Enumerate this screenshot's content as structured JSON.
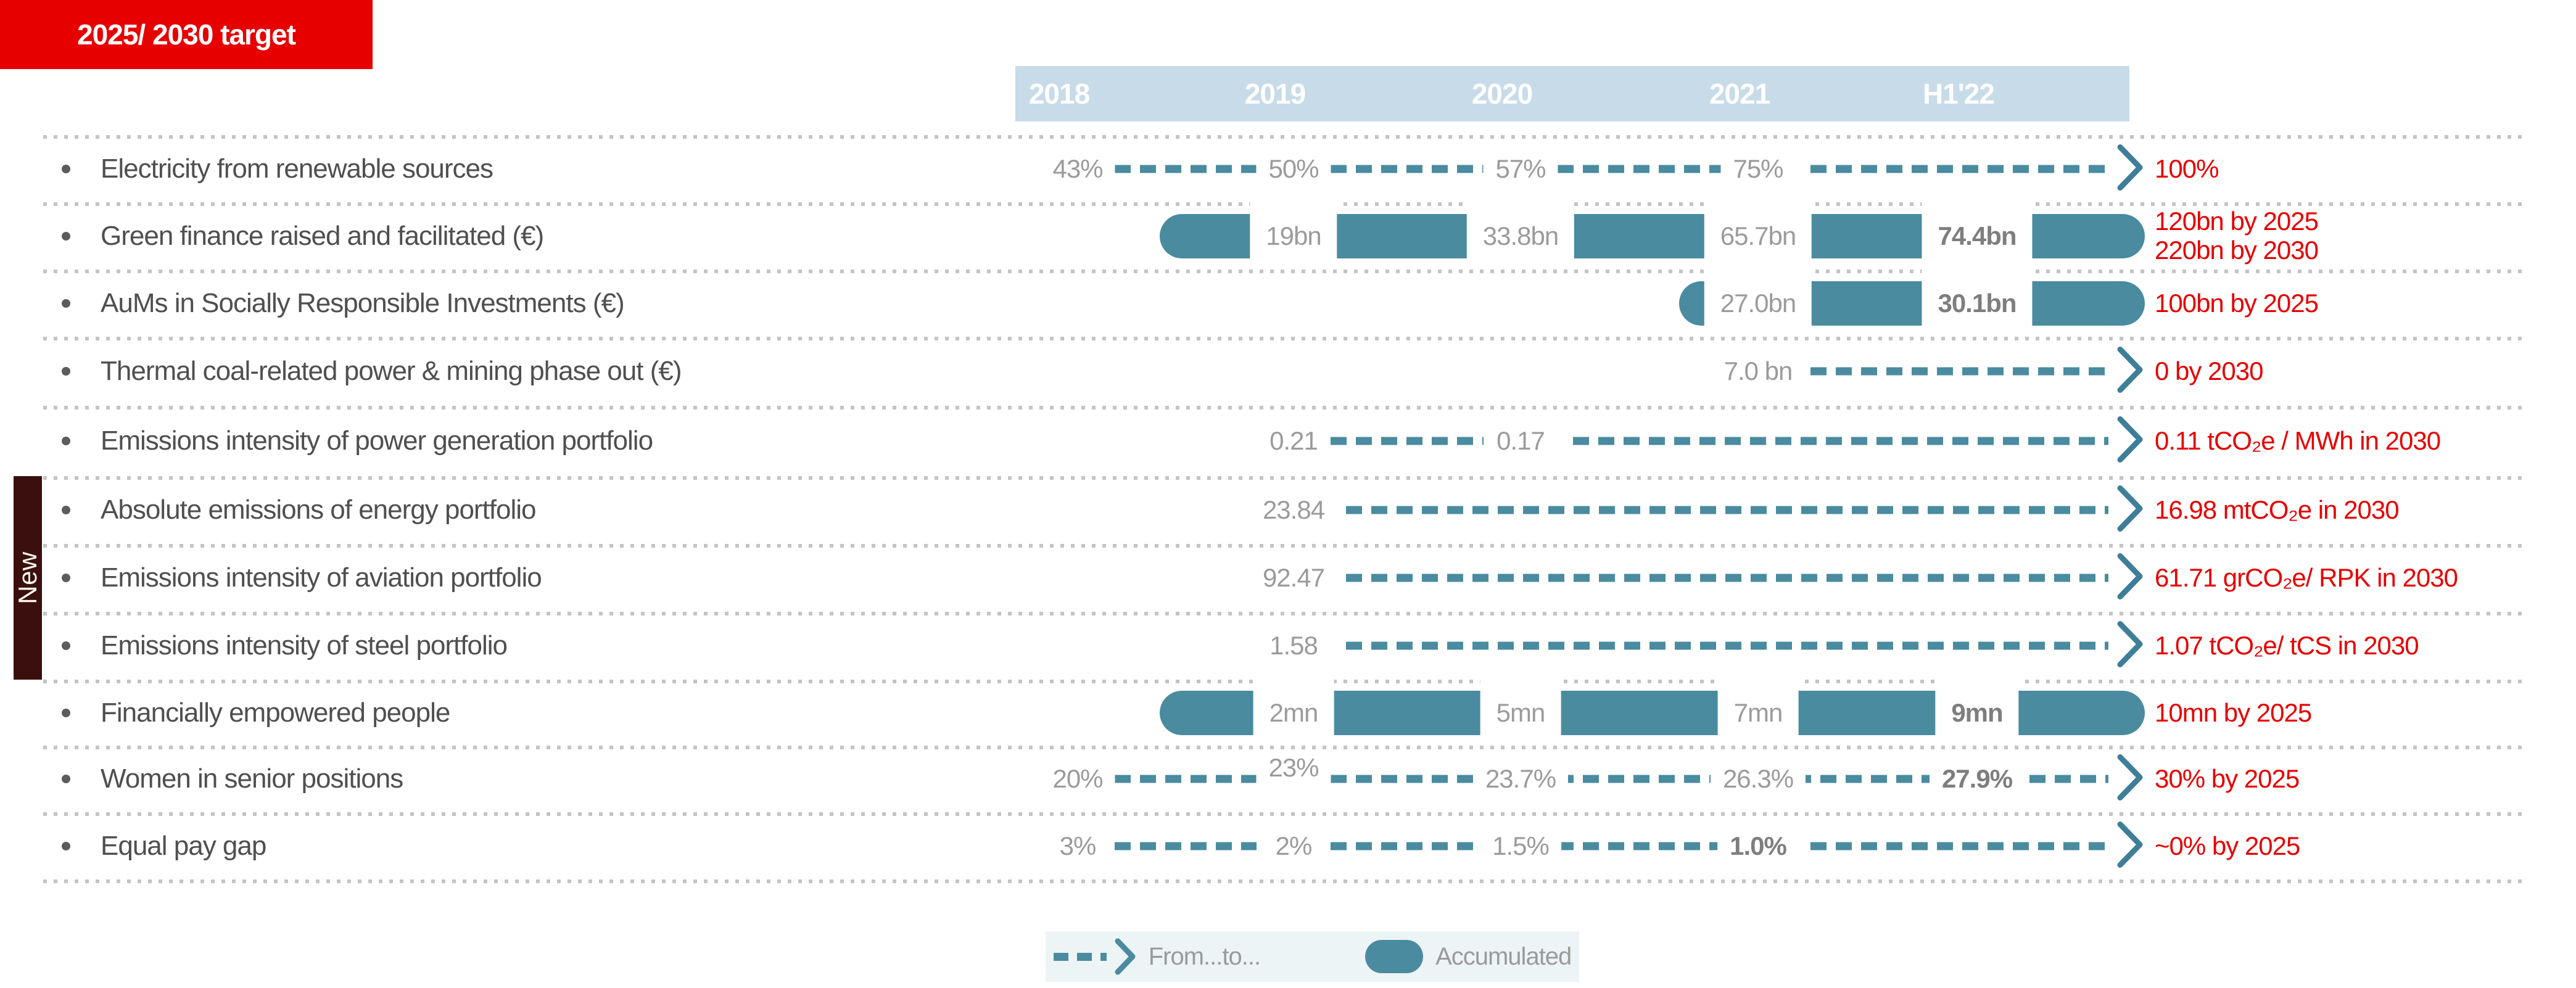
{
  "header": {
    "columns": [
      "2018",
      "2019",
      "2020",
      "2021",
      "H1'22"
    ],
    "target": "2025/ 2030 target"
  },
  "new_badge": "New",
  "rows": [
    {
      "label": "Electricity from renewable sources",
      "kind": "trend",
      "values": [
        {
          "col": 0,
          "text": "43%"
        },
        {
          "col": 1,
          "text": "50%"
        },
        {
          "col": 2,
          "text": "57%"
        },
        {
          "col": 3,
          "text": "75%"
        }
      ],
      "arrow": true,
      "target": "100%"
    },
    {
      "label": "Green finance raised and facilitated (€)",
      "kind": "pill",
      "values": [
        {
          "col": 1,
          "text": "19bn"
        },
        {
          "col": 2,
          "text": "33.8bn"
        },
        {
          "col": 3,
          "text": "65.7bn"
        },
        {
          "col": 4,
          "text": "74.4bn",
          "bold": true
        }
      ],
      "target": "120bn by 2025\n220bn by 2030"
    },
    {
      "label": "AuMs in Socially Responsible Investments (€)",
      "kind": "pill",
      "values": [
        {
          "col": 3,
          "text": "27.0bn"
        },
        {
          "col": 4,
          "text": "30.1bn",
          "bold": true
        }
      ],
      "target": "100bn by 2025"
    },
    {
      "label": "Thermal coal-related power & mining phase out (€)",
      "kind": "trend",
      "values": [
        {
          "col": 3,
          "text": "7.0 bn"
        }
      ],
      "arrow": true,
      "target": "0 by 2030"
    },
    {
      "label": "Emissions intensity of power generation portfolio",
      "kind": "trend",
      "values": [
        {
          "col": 1,
          "text": "0.21"
        },
        {
          "col": 2,
          "text": "0.17"
        }
      ],
      "arrow": true,
      "target": "0.11 tCO₂e / MWh in 2030"
    },
    {
      "label": "Absolute emissions of energy portfolio",
      "kind": "trend",
      "new": true,
      "values": [
        {
          "col": 1,
          "text": "23.84"
        }
      ],
      "arrow": true,
      "target": "16.98 mtCO₂e in 2030"
    },
    {
      "label": "Emissions intensity of aviation portfolio",
      "kind": "trend",
      "new": true,
      "values": [
        {
          "col": 1,
          "text": "92.47"
        }
      ],
      "arrow": true,
      "target": "61.71 grCO₂e/ RPK in 2030"
    },
    {
      "label": "Emissions intensity of steel portfolio",
      "kind": "trend",
      "new": true,
      "values": [
        {
          "col": 1,
          "text": "1.58"
        }
      ],
      "arrow": true,
      "target": "1.07 tCO₂e/ tCS in 2030"
    },
    {
      "label": "Financially empowered people",
      "kind": "pill",
      "values": [
        {
          "col": 1,
          "text": "2mn"
        },
        {
          "col": 2,
          "text": "5mn"
        },
        {
          "col": 3,
          "text": "7mn"
        },
        {
          "col": 4,
          "text": "9mn",
          "bold": true
        }
      ],
      "target": "10mn by 2025"
    },
    {
      "label": "Women in senior positions",
      "kind": "trend",
      "values": [
        {
          "col": 0,
          "text": "20%"
        },
        {
          "col": 1,
          "text": "23%",
          "raised": true
        },
        {
          "col": 2,
          "text": "23.7%"
        },
        {
          "col": 3,
          "text": "26.3%"
        },
        {
          "col": 4,
          "text": "27.9%",
          "bold": true
        }
      ],
      "arrow": true,
      "target": "30% by 2025"
    },
    {
      "label": "Equal pay gap",
      "kind": "trend",
      "values": [
        {
          "col": 0,
          "text": "3%"
        },
        {
          "col": 1,
          "text": "2%"
        },
        {
          "col": 2,
          "text": "1.5%"
        },
        {
          "col": 3,
          "text": "1.0%",
          "bold": true
        }
      ],
      "arrow": true,
      "target": "~0% by 2025"
    }
  ],
  "legend": {
    "from_to": "From...to...",
    "accumulated": "Accumulated"
  },
  "colors": {
    "teal": "#4a8ba0",
    "header_blue": "#c8dbe9",
    "target_red": "#e60000",
    "value_gray": "#9b9b9b",
    "label_gray": "#4f4f4f",
    "new_badge_bg": "#3a0f0d"
  },
  "chart_data": {
    "type": "table",
    "columns": [
      "Metric",
      "2018",
      "2019",
      "2020",
      "2021",
      "H1'22",
      "2025/ 2030 target"
    ],
    "rows": [
      {
        "metric": "Electricity from renewable sources",
        "style": "from-to",
        "values": {
          "2018": "43%",
          "2019": "50%",
          "2020": "57%",
          "2021": "75%",
          "H1'22": null
        },
        "target": "100%"
      },
      {
        "metric": "Green finance raised and facilitated (€)",
        "style": "accumulated",
        "values": {
          "2018": null,
          "2019": "19bn",
          "2020": "33.8bn",
          "2021": "65.7bn",
          "H1'22": "74.4bn"
        },
        "target": "120bn by 2025; 220bn by 2030"
      },
      {
        "metric": "AuMs in Socially Responsible Investments (€)",
        "style": "accumulated",
        "values": {
          "2018": null,
          "2019": null,
          "2020": null,
          "2021": "27.0bn",
          "H1'22": "30.1bn"
        },
        "target": "100bn by 2025"
      },
      {
        "metric": "Thermal coal-related power & mining phase out (€)",
        "style": "from-to",
        "values": {
          "2018": null,
          "2019": null,
          "2020": null,
          "2021": "7.0 bn",
          "H1'22": null
        },
        "target": "0 by 2030"
      },
      {
        "metric": "Emissions intensity of power generation portfolio",
        "style": "from-to",
        "values": {
          "2018": null,
          "2019": "0.21",
          "2020": "0.17",
          "2021": null,
          "H1'22": null
        },
        "target": "0.11 tCO₂e / MWh in 2030"
      },
      {
        "metric": "Absolute emissions of energy portfolio",
        "style": "from-to",
        "new": true,
        "values": {
          "2018": null,
          "2019": "23.84",
          "2020": null,
          "2021": null,
          "H1'22": null
        },
        "target": "16.98 mtCO₂e in 2030"
      },
      {
        "metric": "Emissions intensity of aviation portfolio",
        "style": "from-to",
        "new": true,
        "values": {
          "2018": null,
          "2019": "92.47",
          "2020": null,
          "2021": null,
          "H1'22": null
        },
        "target": "61.71 grCO₂e/ RPK in 2030"
      },
      {
        "metric": "Emissions intensity of steel portfolio",
        "style": "from-to",
        "new": true,
        "values": {
          "2018": null,
          "2019": "1.58",
          "2020": null,
          "2021": null,
          "H1'22": null
        },
        "target": "1.07 tCO₂e/ tCS in 2030"
      },
      {
        "metric": "Financially empowered people",
        "style": "accumulated",
        "values": {
          "2018": null,
          "2019": "2mn",
          "2020": "5mn",
          "2021": "7mn",
          "H1'22": "9mn"
        },
        "target": "10mn by 2025"
      },
      {
        "metric": "Women in senior positions",
        "style": "from-to",
        "values": {
          "2018": "20%",
          "2019": "23%",
          "2020": "23.7%",
          "2021": "26.3%",
          "H1'22": "27.9%"
        },
        "target": "30% by 2025"
      },
      {
        "metric": "Equal pay gap",
        "style": "from-to",
        "values": {
          "2018": "3%",
          "2019": "2%",
          "2020": "1.5%",
          "2021": "1.0%",
          "H1'22": null
        },
        "target": "~0% by 2025"
      }
    ]
  }
}
